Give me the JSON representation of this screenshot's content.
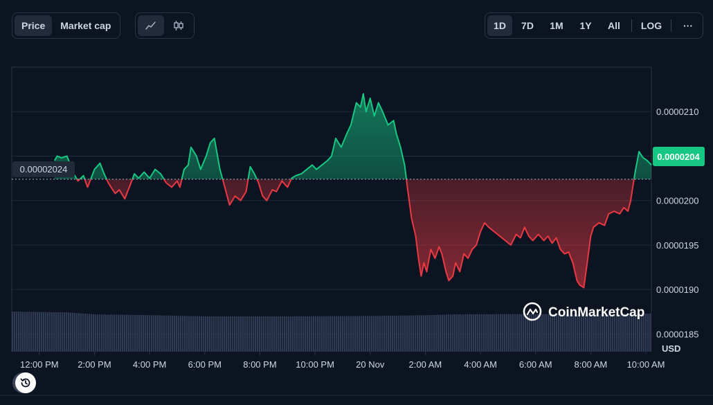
{
  "toolbar": {
    "type_tabs": [
      {
        "label": "Price",
        "active": true
      },
      {
        "label": "Market cap",
        "active": false
      }
    ],
    "view_icons": [
      "line-chart-icon",
      "candlestick-icon"
    ],
    "ranges": [
      {
        "label": "1D",
        "active": true
      },
      {
        "label": "7D",
        "active": false
      },
      {
        "label": "1M",
        "active": false
      },
      {
        "label": "1Y",
        "active": false
      },
      {
        "label": "All",
        "active": false
      }
    ],
    "log_label": "LOG",
    "more_label": "···"
  },
  "watermark": "CoinMarketCap",
  "currency_label": "USD",
  "reference_label": "0.00002024",
  "current_price_label": "0.0000204",
  "colors": {
    "background": "#0d1421",
    "up": "#16c784",
    "down": "#ea3943",
    "volume": "#2f3a55",
    "grid": "#222b3a",
    "current_badge": "#16c784"
  },
  "chart_data": {
    "type": "area",
    "title": "",
    "xlabel": "",
    "ylabel": "USD",
    "reference_value": 2.024e-05,
    "ylim": [
      1.83e-05,
      2.15e-05
    ],
    "y_ticks": [
      {
        "value": 2.1e-05,
        "label": "0.0000210"
      },
      {
        "value": 2.05e-05,
        "label": "0.0000205"
      },
      {
        "value": 2e-05,
        "label": "0.0000200"
      },
      {
        "value": 1.95e-05,
        "label": "0.0000195"
      },
      {
        "value": 1.9e-05,
        "label": "0.0000190"
      },
      {
        "value": 1.85e-05,
        "label": "0.0000185"
      }
    ],
    "x_range": [
      0,
      23.2
    ],
    "x_ticks": [
      {
        "value": 1.0,
        "label": "12:00 PM"
      },
      {
        "value": 3.0,
        "label": "2:00 PM"
      },
      {
        "value": 5.0,
        "label": "4:00 PM"
      },
      {
        "value": 7.0,
        "label": "6:00 PM"
      },
      {
        "value": 9.0,
        "label": "8:00 PM"
      },
      {
        "value": 11.0,
        "label": "10:00 PM"
      },
      {
        "value": 13.0,
        "label": "20 Nov"
      },
      {
        "value": 15.0,
        "label": "2:00 AM"
      },
      {
        "value": 17.0,
        "label": "4:00 AM"
      },
      {
        "value": 19.0,
        "label": "6:00 AM"
      },
      {
        "value": 21.0,
        "label": "8:00 AM"
      },
      {
        "value": 23.0,
        "label": "10:00 AM"
      }
    ],
    "price": [
      [
        1.55,
        2.045e-05
      ],
      [
        1.65,
        2.05e-05
      ],
      [
        1.8,
        2.048e-05
      ],
      [
        2.0,
        2.05e-05
      ],
      [
        2.25,
        2.03e-05
      ],
      [
        2.4,
        2.022e-05
      ],
      [
        2.6,
        2.028e-05
      ],
      [
        2.75,
        2.015e-05
      ],
      [
        3.0,
        2.035e-05
      ],
      [
        3.2,
        2.042e-05
      ],
      [
        3.35,
        2.03e-05
      ],
      [
        3.5,
        2.02e-05
      ],
      [
        3.6,
        2.015e-05
      ],
      [
        3.75,
        2.008e-05
      ],
      [
        3.9,
        2.012e-05
      ],
      [
        4.1,
        2.002e-05
      ],
      [
        4.3,
        2.018e-05
      ],
      [
        4.45,
        2.03e-05
      ],
      [
        4.6,
        2.025e-05
      ],
      [
        4.8,
        2.032e-05
      ],
      [
        5.0,
        2.025e-05
      ],
      [
        5.2,
        2.035e-05
      ],
      [
        5.4,
        2.03e-05
      ],
      [
        5.6,
        2.02e-05
      ],
      [
        5.8,
        2.015e-05
      ],
      [
        6.0,
        2.022e-05
      ],
      [
        6.1,
        2.015e-05
      ],
      [
        6.25,
        2.035e-05
      ],
      [
        6.4,
        2.04e-05
      ],
      [
        6.5,
        2.06e-05
      ],
      [
        6.7,
        2.05e-05
      ],
      [
        6.85,
        2.035e-05
      ],
      [
        7.05,
        2.05e-05
      ],
      [
        7.2,
        2.065e-05
      ],
      [
        7.35,
        2.07e-05
      ],
      [
        7.55,
        2.035e-05
      ],
      [
        7.7,
        2.018e-05
      ],
      [
        7.9,
        1.995e-05
      ],
      [
        8.1,
        2.005e-05
      ],
      [
        8.3,
        2e-05
      ],
      [
        8.5,
        2.01e-05
      ],
      [
        8.65,
        2.038e-05
      ],
      [
        8.8,
        2.03e-05
      ],
      [
        8.95,
        2.02e-05
      ],
      [
        9.1,
        2.005e-05
      ],
      [
        9.25,
        2e-05
      ],
      [
        9.45,
        2.012e-05
      ],
      [
        9.6,
        2.01e-05
      ],
      [
        9.8,
        2.022e-05
      ],
      [
        10.0,
        2.015e-05
      ],
      [
        10.15,
        2.025e-05
      ],
      [
        10.3,
        2.028e-05
      ],
      [
        10.5,
        2.03e-05
      ],
      [
        10.7,
        2.035e-05
      ],
      [
        10.9,
        2.04e-05
      ],
      [
        11.05,
        2.035e-05
      ],
      [
        11.25,
        2.04e-05
      ],
      [
        11.45,
        2.045e-05
      ],
      [
        11.6,
        2.05e-05
      ],
      [
        11.75,
        2.07e-05
      ],
      [
        11.95,
        2.06e-05
      ],
      [
        12.15,
        2.075e-05
      ],
      [
        12.3,
        2.085e-05
      ],
      [
        12.5,
        2.11e-05
      ],
      [
        12.65,
        2.105e-05
      ],
      [
        12.75,
        2.12e-05
      ],
      [
        12.85,
        2.1e-05
      ],
      [
        13.0,
        2.115e-05
      ],
      [
        13.15,
        2.095e-05
      ],
      [
        13.3,
        2.11e-05
      ],
      [
        13.45,
        2.1e-05
      ],
      [
        13.65,
        2.085e-05
      ],
      [
        13.85,
        2.09e-05
      ],
      [
        13.95,
        2.075e-05
      ],
      [
        14.1,
        2.06e-05
      ],
      [
        14.25,
        2.04e-05
      ],
      [
        14.35,
        2.015e-05
      ],
      [
        14.5,
        1.98e-05
      ],
      [
        14.65,
        1.96e-05
      ],
      [
        14.75,
        1.935e-05
      ],
      [
        14.85,
        1.915e-05
      ],
      [
        14.95,
        1.93e-05
      ],
      [
        15.05,
        1.92e-05
      ],
      [
        15.2,
        1.945e-05
      ],
      [
        15.35,
        1.935e-05
      ],
      [
        15.5,
        1.948e-05
      ],
      [
        15.6,
        1.94e-05
      ],
      [
        15.75,
        1.92e-05
      ],
      [
        15.85,
        1.91e-05
      ],
      [
        16.0,
        1.915e-05
      ],
      [
        16.1,
        1.93e-05
      ],
      [
        16.25,
        1.92e-05
      ],
      [
        16.4,
        1.94e-05
      ],
      [
        16.55,
        1.935e-05
      ],
      [
        16.7,
        1.945e-05
      ],
      [
        16.85,
        1.95e-05
      ],
      [
        17.0,
        1.965e-05
      ],
      [
        17.15,
        1.975e-05
      ],
      [
        17.3,
        1.97e-05
      ],
      [
        17.5,
        1.965e-05
      ],
      [
        17.7,
        1.96e-05
      ],
      [
        17.9,
        1.955e-05
      ],
      [
        18.1,
        1.95e-05
      ],
      [
        18.3,
        1.962e-05
      ],
      [
        18.45,
        1.958e-05
      ],
      [
        18.6,
        1.97e-05
      ],
      [
        18.75,
        1.96e-05
      ],
      [
        18.9,
        1.955e-05
      ],
      [
        19.1,
        1.962e-05
      ],
      [
        19.3,
        1.955e-05
      ],
      [
        19.45,
        1.96e-05
      ],
      [
        19.6,
        1.952e-05
      ],
      [
        19.75,
        1.958e-05
      ],
      [
        19.9,
        1.945e-05
      ],
      [
        20.05,
        1.94e-05
      ],
      [
        20.2,
        1.942e-05
      ],
      [
        20.35,
        1.93e-05
      ],
      [
        20.5,
        1.91e-05
      ],
      [
        20.6,
        1.905e-05
      ],
      [
        20.75,
        1.902e-05
      ],
      [
        20.85,
        1.925e-05
      ],
      [
        21.0,
        1.96e-05
      ],
      [
        21.1,
        1.97e-05
      ],
      [
        21.3,
        1.975e-05
      ],
      [
        21.5,
        1.972e-05
      ],
      [
        21.65,
        1.985e-05
      ],
      [
        21.85,
        1.988e-05
      ],
      [
        22.05,
        1.985e-05
      ],
      [
        22.2,
        1.992e-05
      ],
      [
        22.35,
        1.988e-05
      ],
      [
        22.45,
        2e-05
      ],
      [
        22.6,
        2.03e-05
      ],
      [
        22.75,
        2.055e-05
      ],
      [
        22.9,
        2.048e-05
      ],
      [
        23.05,
        2.045e-05
      ],
      [
        23.2,
        2.04e-05
      ]
    ],
    "volume_relative": [
      [
        0.0,
        1.0
      ],
      [
        2.0,
        0.98
      ],
      [
        3.0,
        0.93
      ],
      [
        5.0,
        0.91
      ],
      [
        7.0,
        0.88
      ],
      [
        8.0,
        0.88
      ],
      [
        10.0,
        0.88
      ],
      [
        13.0,
        0.89
      ],
      [
        15.0,
        0.91
      ],
      [
        16.0,
        0.93
      ],
      [
        19.0,
        0.94
      ],
      [
        21.0,
        0.92
      ],
      [
        23.2,
        0.95
      ]
    ]
  }
}
